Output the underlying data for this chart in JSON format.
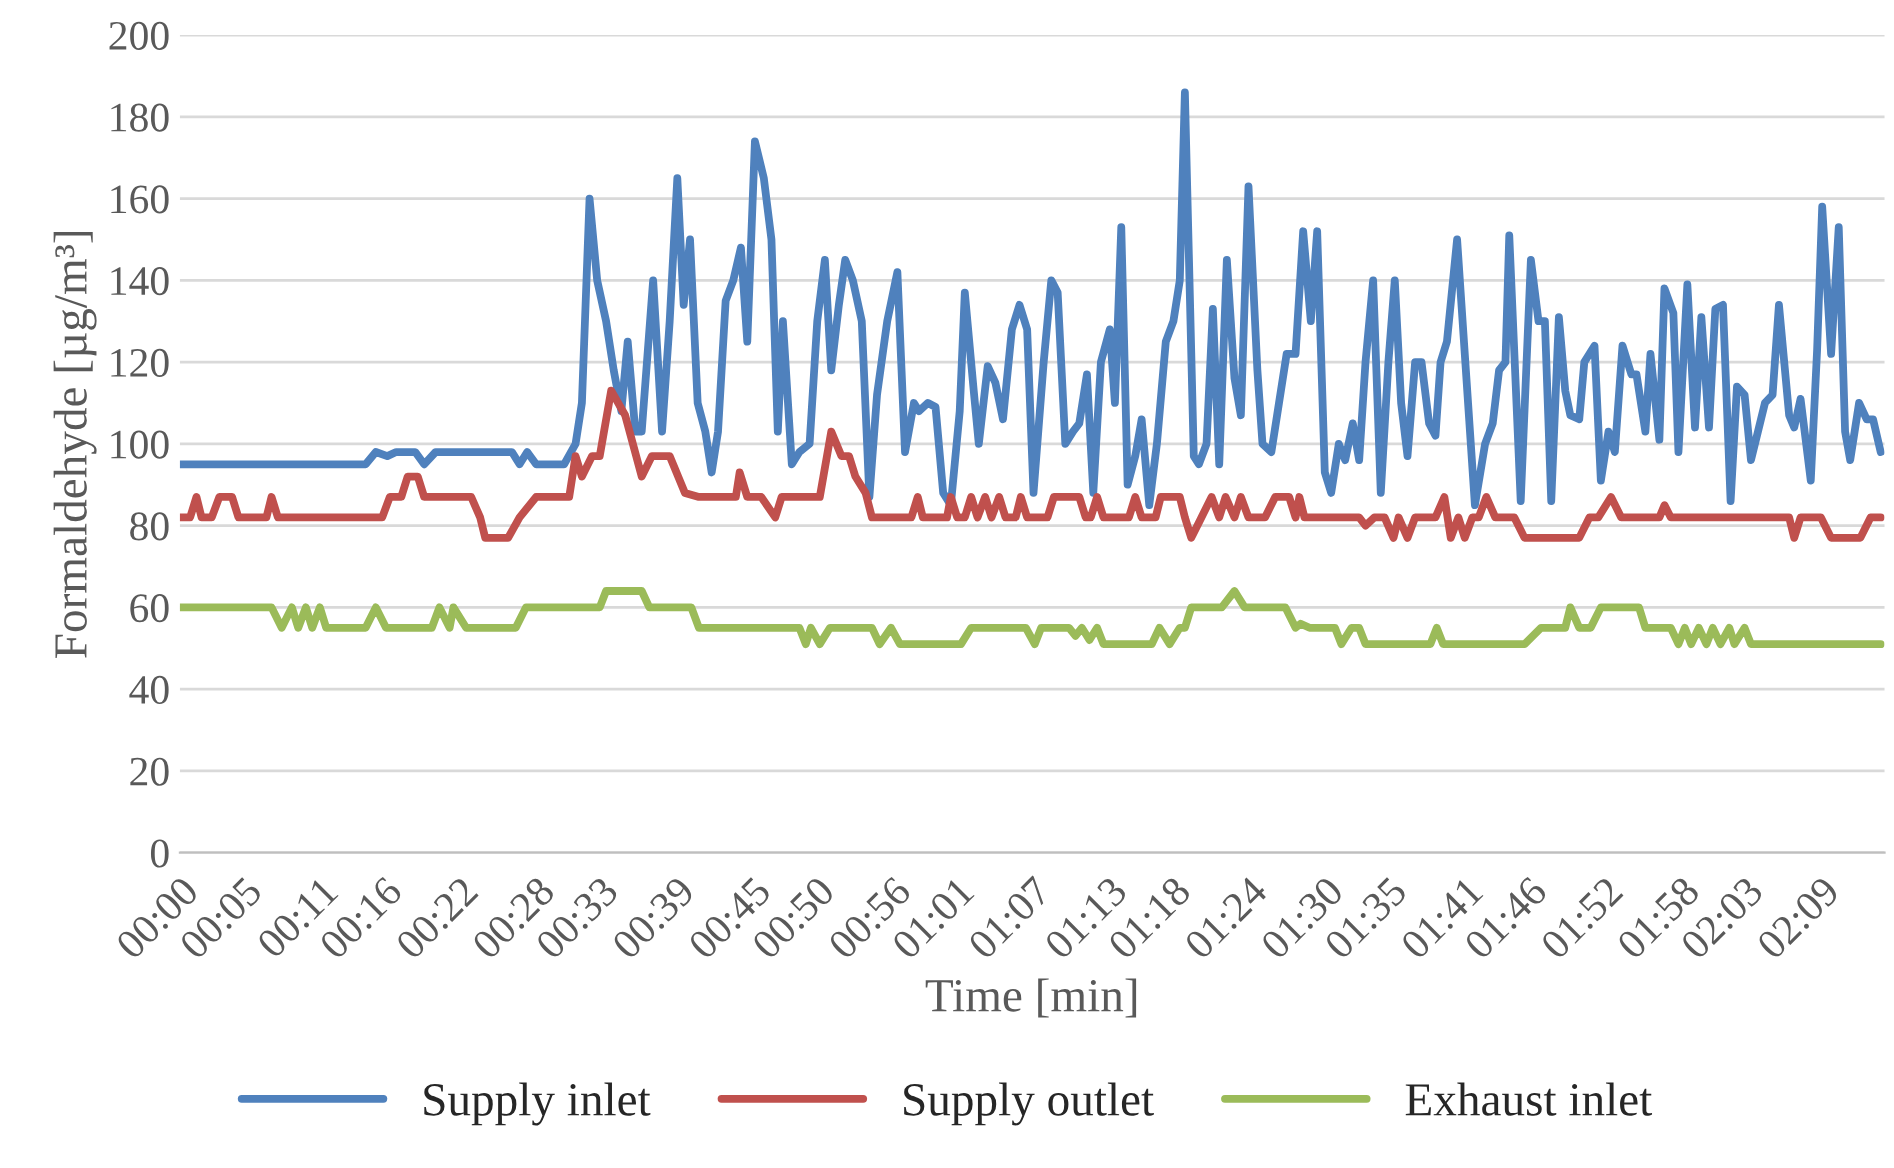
{
  "chart_data": {
    "type": "line",
    "xlabel": "Time [min]",
    "ylabel": "Formaldehyde [µg/m³]",
    "xlim": [
      0,
      134
    ],
    "ylim": [
      0,
      200
    ],
    "xticks": [
      {
        "value": 0,
        "label": "00:00"
      },
      {
        "value": 5,
        "label": "00:05"
      },
      {
        "value": 11,
        "label": "00:11"
      },
      {
        "value": 16,
        "label": "00:16"
      },
      {
        "value": 22,
        "label": "00:22"
      },
      {
        "value": 28,
        "label": "00:28"
      },
      {
        "value": 33,
        "label": "00:33"
      },
      {
        "value": 39,
        "label": "00:39"
      },
      {
        "value": 45,
        "label": "00:45"
      },
      {
        "value": 50,
        "label": "00:50"
      },
      {
        "value": 56,
        "label": "00:56"
      },
      {
        "value": 61,
        "label": "01:01"
      },
      {
        "value": 67,
        "label": "01:07"
      },
      {
        "value": 73,
        "label": "01:13"
      },
      {
        "value": 78,
        "label": "01:18"
      },
      {
        "value": 84,
        "label": "01:24"
      },
      {
        "value": 90,
        "label": "01:30"
      },
      {
        "value": 95,
        "label": "01:35"
      },
      {
        "value": 101,
        "label": "01:41"
      },
      {
        "value": 106,
        "label": "01:46"
      },
      {
        "value": 112,
        "label": "01:52"
      },
      {
        "value": 118,
        "label": "01:58"
      },
      {
        "value": 123,
        "label": "02:03"
      },
      {
        "value": 129,
        "label": "02:09"
      }
    ],
    "yticks": [
      0,
      20,
      40,
      60,
      80,
      100,
      120,
      140,
      160,
      180,
      200
    ],
    "grid": "y",
    "legend": "bottom",
    "marker": "none",
    "line_style": "solid",
    "series": [
      {
        "name": "Supply inlet",
        "color": "#4f81bd",
        "x": [
          0,
          14.6,
          15.4,
          16.3,
          17.0,
          18.5,
          19.2,
          20.1,
          26.1,
          26.7,
          27.3,
          28.0,
          30.2,
          31.1,
          31.6,
          32.2,
          32.8,
          33.5,
          34.1,
          34.7,
          35.2,
          35.8,
          36.3,
          37.2,
          37.9,
          38.5,
          39.1,
          39.6,
          40.1,
          40.7,
          41.3,
          41.8,
          42.3,
          42.9,
          43.5,
          44.1,
          44.6,
          45.2,
          45.9,
          46.5,
          47.0,
          47.4,
          48.1,
          48.7,
          49.5,
          50.1,
          50.7,
          51.2,
          51.8,
          52.3,
          52.9,
          53.6,
          54.2,
          54.8,
          55.6,
          56.4,
          57.0,
          57.7,
          58.1,
          58.8,
          59.4,
          60.0,
          60.6,
          61.3,
          61.7,
          62.4,
          62.8,
          63.5,
          64.1,
          64.7,
          65.4,
          66.0,
          66.6,
          67.1,
          67.9,
          68.5,
          69.0,
          69.6,
          70.2,
          70.7,
          71.3,
          71.8,
          72.4,
          73.1,
          73.5,
          74.0,
          74.5,
          75.1,
          75.6,
          76.2,
          76.8,
          77.5,
          78.1,
          78.6,
          79.0,
          79.7,
          80.1,
          80.7,
          81.2,
          81.7,
          82.3,
          82.9,
          83.4,
          84.0,
          84.7,
          85.1,
          85.8,
          86.4,
          87.0,
          87.7,
          88.3,
          88.9,
          89.4,
          90.0,
          90.5,
          91.1,
          91.6,
          92.2,
          92.7,
          93.2,
          93.8,
          94.4,
          95.0,
          95.5,
          96.0,
          96.5,
          97.1,
          97.6,
          98.2,
          98.7,
          99.1,
          99.6,
          100.4,
          101.8,
          102.6,
          103.2,
          103.7,
          104.2,
          104.5,
          105.4,
          106.2,
          106.8,
          107.3,
          107.8,
          108.4,
          108.9,
          109.3,
          110.0,
          110.4,
          111.2,
          111.7,
          112.3,
          112.8,
          113.4,
          114.1,
          114.5,
          115.2,
          115.6,
          116.3,
          116.7,
          117.4,
          117.8,
          118.5,
          119.1,
          119.6,
          120.2,
          120.7,
          121.3,
          121.9,
          122.4,
          123.0,
          123.5,
          124.6,
          125.2,
          125.7,
          126.5,
          126.9,
          127.4,
          128.2,
          128.7,
          129.1,
          129.8,
          130.4,
          130.9,
          131.3,
          132.0,
          132.6,
          133.1,
          133.7
        ],
        "values": [
          95,
          95,
          98,
          97,
          98,
          98,
          95,
          98,
          98,
          95,
          98,
          95,
          95,
          100,
          110,
          160,
          140,
          130,
          118,
          108,
          125,
          103,
          103,
          140,
          103,
          130,
          165,
          134,
          150,
          110,
          103,
          93,
          103,
          135,
          140,
          148,
          125,
          174,
          165,
          150,
          103,
          130,
          95,
          98,
          100,
          130,
          145,
          118,
          134,
          145,
          140,
          130,
          87,
          112,
          130,
          142,
          98,
          110,
          108,
          110,
          109,
          88,
          85,
          108,
          137,
          113,
          100,
          119,
          115,
          106,
          128,
          134,
          128,
          88,
          120,
          140,
          137,
          100,
          103,
          105,
          117,
          88,
          120,
          128,
          110,
          153,
          90,
          97,
          106,
          85,
          100,
          125,
          130,
          140,
          186,
          97,
          95,
          100,
          133,
          95,
          145,
          116,
          107,
          163,
          118,
          100,
          98,
          110,
          122,
          122,
          152,
          130,
          152,
          93,
          88,
          100,
          96,
          105,
          96,
          120,
          140,
          88,
          120,
          140,
          110,
          97,
          120,
          120,
          105,
          102,
          120,
          125,
          150,
          85,
          100,
          105,
          118,
          120,
          151,
          86,
          145,
          130,
          130,
          86,
          131,
          113,
          107,
          106,
          120,
          124,
          91,
          103,
          98,
          124,
          117,
          117,
          103,
          122,
          101,
          138,
          132,
          98,
          139,
          104,
          131,
          104,
          133,
          134,
          86,
          114,
          112,
          96,
          110,
          112,
          134,
          107,
          104,
          111,
          91,
          123,
          158,
          122,
          153,
          103,
          96,
          110,
          106,
          106,
          98
        ]
      },
      {
        "name": "Supply outlet",
        "color": "#c0504d",
        "x": [
          0,
          0.8,
          1.3,
          1.7,
          2.5,
          3.1,
          4.1,
          4.6,
          6.8,
          7.2,
          7.7,
          15.9,
          16.5,
          17.4,
          17.9,
          18.7,
          19.2,
          22.9,
          23.6,
          24.0,
          25.8,
          26.7,
          28.0,
          30.6,
          31.1,
          31.6,
          32.4,
          33.0,
          33.9,
          35.0,
          36.3,
          37.1,
          38.5,
          39.7,
          40.8,
          43.7,
          44.0,
          44.6,
          45.7,
          46.8,
          47.3,
          50.3,
          51.2,
          52.0,
          52.6,
          53.1,
          53.9,
          54.4,
          57.5,
          58.0,
          58.4,
          60.3,
          60.6,
          61.1,
          61.7,
          62.2,
          62.7,
          63.3,
          63.8,
          64.4,
          64.9,
          65.7,
          66.1,
          66.6,
          68.2,
          68.7,
          70.7,
          71.2,
          71.6,
          72.1,
          72.6,
          74.6,
          75.1,
          75.6,
          76.7,
          77.1,
          78.6,
          79.0,
          79.5,
          80.3,
          81.1,
          81.7,
          82.2,
          82.9,
          83.4,
          84.0,
          85.3,
          86.1,
          87.2,
          87.7,
          88.0,
          88.4,
          92.7,
          93.2,
          93.9,
          94.7,
          95.4,
          95.8,
          96.5,
          97.1,
          98.7,
          99.4,
          99.9,
          100.5,
          101.0,
          101.6,
          102.1,
          102.7,
          103.4,
          104.9,
          105.7,
          110.0,
          110.8,
          111.5,
          112.5,
          113.3,
          116.3,
          116.7,
          117.2,
          126.5,
          126.9,
          127.4,
          129.0,
          129.8,
          132.1,
          132.9,
          133.7
        ],
        "values": [
          82,
          82,
          87,
          82,
          82,
          87,
          87,
          82,
          82,
          87,
          82,
          82,
          87,
          87,
          92,
          92,
          87,
          87,
          82,
          77,
          77,
          82,
          87,
          87,
          97,
          92,
          97,
          97,
          113,
          107,
          92,
          97,
          97,
          88,
          87,
          87,
          93,
          87,
          87,
          82,
          87,
          87,
          103,
          97,
          97,
          92,
          88,
          82,
          82,
          87,
          82,
          82,
          87,
          82,
          82,
          87,
          82,
          87,
          82,
          87,
          82,
          82,
          87,
          82,
          82,
          87,
          87,
          82,
          82,
          87,
          82,
          82,
          87,
          82,
          82,
          87,
          87,
          82,
          77,
          82,
          87,
          82,
          87,
          82,
          87,
          82,
          82,
          87,
          87,
          82,
          87,
          82,
          82,
          80,
          82,
          82,
          77,
          82,
          77,
          82,
          82,
          87,
          77,
          82,
          77,
          82,
          82,
          87,
          82,
          82,
          77,
          77,
          82,
          82,
          87,
          82,
          82,
          85,
          82,
          82,
          77,
          82,
          82,
          77,
          77,
          82,
          82
        ]
      },
      {
        "name": "Exhaust inlet",
        "color": "#9bbb59",
        "x": [
          0,
          7.2,
          8.0,
          8.8,
          9.3,
          9.9,
          10.4,
          11.0,
          11.5,
          14.6,
          15.4,
          16.2,
          19.8,
          20.4,
          21.2,
          21.5,
          22.5,
          26.4,
          27.2,
          33.0,
          33.5,
          36.3,
          36.9,
          40.2,
          40.8,
          48.7,
          49.2,
          49.6,
          50.3,
          51.1,
          54.4,
          55.0,
          55.9,
          56.6,
          61.4,
          62.2,
          66.5,
          67.2,
          67.7,
          69.9,
          70.4,
          70.9,
          71.5,
          72.1,
          72.6,
          76.4,
          77.0,
          77.8,
          78.6,
          79.0,
          79.5,
          81.9,
          82.9,
          83.7,
          86.9,
          87.7,
          88.1,
          88.8,
          90.8,
          91.3,
          92.1,
          92.7,
          93.2,
          98.3,
          98.8,
          99.3,
          105.7,
          107.0,
          108.9,
          109.3,
          110.0,
          110.9,
          111.7,
          114.7,
          115.2,
          117.2,
          117.8,
          118.3,
          118.8,
          119.4,
          120.0,
          120.5,
          121.1,
          121.8,
          122.2,
          123.0,
          123.5,
          133.7
        ],
        "values": [
          60,
          60,
          55,
          60,
          55,
          60,
          55,
          60,
          55,
          55,
          60,
          55,
          55,
          60,
          55,
          60,
          55,
          55,
          60,
          60,
          64,
          64,
          60,
          60,
          55,
          55,
          51,
          55,
          51,
          55,
          55,
          51,
          55,
          51,
          51,
          55,
          55,
          51,
          55,
          55,
          53,
          55,
          52,
          55,
          51,
          51,
          55,
          51,
          55,
          55,
          60,
          60,
          64,
          60,
          60,
          55,
          56,
          55,
          55,
          51,
          55,
          55,
          51,
          51,
          55,
          51,
          51,
          55,
          55,
          60,
          55,
          55,
          60,
          60,
          55,
          55,
          51,
          55,
          51,
          55,
          51,
          55,
          51,
          55,
          51,
          55,
          51,
          51
        ]
      }
    ]
  }
}
